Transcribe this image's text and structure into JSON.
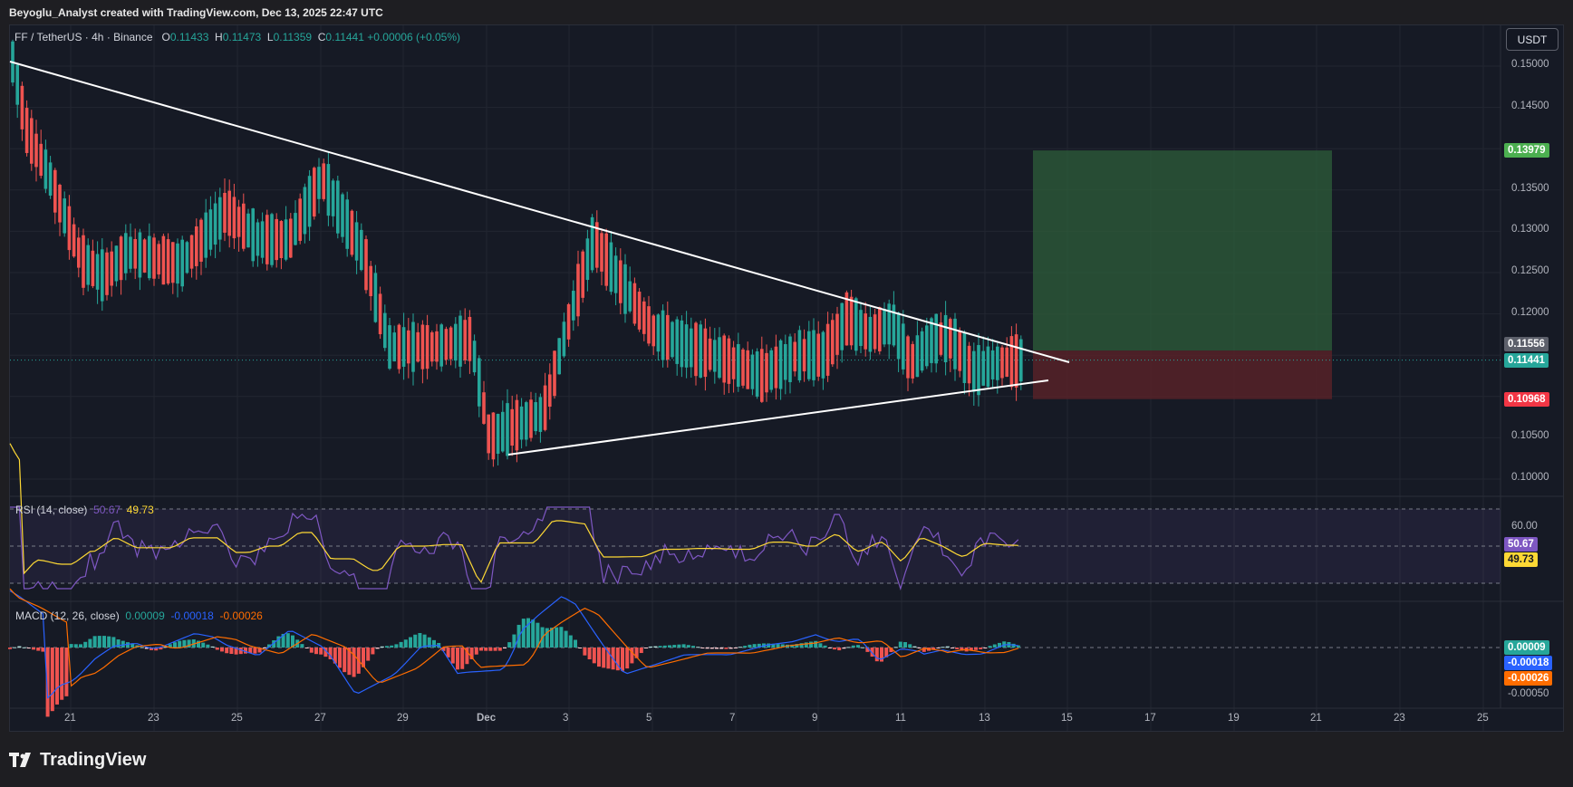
{
  "caption": "Beyoglu_Analyst created with TradingView.com, Dec 13, 2025 22:47 UTC",
  "symbol": {
    "name": "FF / TetherUS · 4h · Binance",
    "o_label": "O",
    "o": "0.11433",
    "h_label": "H",
    "h": "0.11473",
    "l_label": "L",
    "l": "0.11359",
    "c_label": "C",
    "c": "0.11441",
    "change": "+0.00006 (+0.05%)"
  },
  "currency_button": "USDT",
  "price_axis": [
    "0.15000",
    "0.14500",
    "0.13500",
    "0.13000",
    "0.12500",
    "0.12000",
    "0.10500",
    "0.10000"
  ],
  "price_tags": {
    "target": "0.13979",
    "entry": "0.11556",
    "last": "0.11441",
    "stop": "0.10968"
  },
  "rsi": {
    "title": "RSI (14, close)",
    "value": "50.67",
    "ma": "49.73",
    "axis": "60.00"
  },
  "macd": {
    "title": "MACD (12, 26, close)",
    "hist": "0.00009",
    "macd": "-0.00018",
    "signal": "-0.00026",
    "axis": "-0.00050"
  },
  "time_axis": [
    "21",
    "23",
    "25",
    "27",
    "29",
    "Dec",
    "3",
    "5",
    "7",
    "9",
    "11",
    "13",
    "15",
    "17",
    "19",
    "21",
    "23",
    "25"
  ],
  "brand": "TradingView",
  "colors": {
    "up": "#26a69a",
    "down": "#ef5350",
    "target_zone": "#2e5e3a",
    "stop_zone": "#5a2228",
    "rsi_line": "#7e57c2",
    "rsi_ma": "#fdd835",
    "macd_line": "#2962ff",
    "signal_line": "#ff6d00"
  },
  "chart_data": {
    "type": "candlestick",
    "price_range": [
      0.0975,
      0.1515
    ],
    "trendlines": {
      "descending_resistance": [
        [
          "start",
          0.1505
        ],
        [
          "Dec 15",
          0.1149
        ]
      ],
      "ascending_support": [
        [
          "Dec 1",
          0.1032
        ],
        [
          "Dec 14",
          0.1117
        ]
      ]
    },
    "long_position": {
      "target": 0.13979,
      "entry": 0.11556,
      "stop": 0.10968
    }
  }
}
